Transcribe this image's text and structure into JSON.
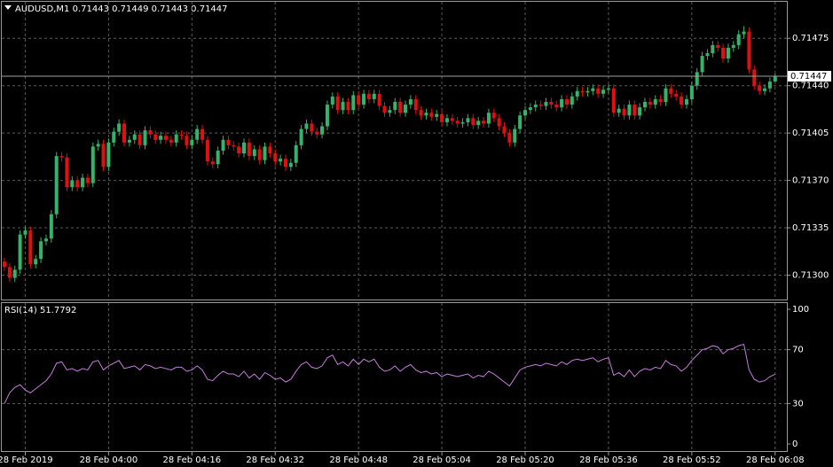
{
  "chart_data": [
    {
      "type": "candlestick",
      "title": "AUDUSD,M1  0.71443 0.71449 0.71443 0.71447",
      "up_color": "#36b36a",
      "down_color": "#e01010",
      "categories": [
        null,
        null,
        null,
        null,
        "28 Feb 2019",
        null,
        null,
        null,
        null,
        null,
        null,
        null,
        null,
        null,
        null,
        null,
        null,
        null,
        null,
        null,
        "28 Feb 04:00",
        null,
        null,
        null,
        null,
        null,
        null,
        null,
        null,
        null,
        null,
        null,
        null,
        null,
        null,
        null,
        "28 Feb 04:16",
        null,
        null,
        null,
        null,
        null,
        null,
        null,
        null,
        null,
        null,
        null,
        null,
        null,
        null,
        null,
        "28 Feb 04:32",
        null,
        null,
        null,
        null,
        null,
        null,
        null,
        null,
        null,
        null,
        null,
        null,
        null,
        null,
        null,
        "28 Feb 04:48",
        null,
        null,
        null,
        null,
        null,
        null,
        null,
        null,
        null,
        null,
        null,
        null,
        null,
        null,
        null,
        "28 Feb 05:04",
        null,
        null,
        null,
        null,
        null,
        null,
        null,
        null,
        null,
        null,
        null,
        null,
        null,
        null,
        null,
        "28 Feb 05:20",
        null,
        null,
        null,
        null,
        null,
        null,
        null,
        null,
        null,
        null,
        null,
        null,
        null,
        null,
        null,
        "28 Feb 05:36",
        null,
        null,
        null,
        null,
        null,
        null,
        null,
        null,
        null,
        null,
        null,
        null,
        null,
        null,
        null,
        "28 Feb 05:52",
        null,
        null,
        null,
        null,
        null,
        null,
        null,
        null,
        null,
        null,
        null,
        null,
        null,
        null,
        null,
        "28 Feb 06:08"
      ],
      "open": [
        0.7131,
        0.71306,
        0.71298,
        0.71304,
        0.7133,
        0.71333,
        0.71308,
        0.71312,
        0.71325,
        0.71327,
        0.71345,
        0.71388,
        0.71387,
        0.71365,
        0.7137,
        0.71365,
        0.71372,
        0.71368,
        0.71395,
        0.71397,
        0.7138,
        0.71398,
        0.71406,
        0.71412,
        0.71398,
        0.714,
        0.71404,
        0.71396,
        0.71407,
        0.71404,
        0.714,
        0.71403,
        0.714,
        0.71398,
        0.71404,
        0.71403,
        0.71396,
        0.714,
        0.71408,
        0.714,
        0.71384,
        0.71382,
        0.71392,
        0.714,
        0.71396,
        0.71395,
        0.7139,
        0.71398,
        0.71388,
        0.71393,
        0.71385,
        0.71395,
        0.7139,
        0.71384,
        0.71386,
        0.7138,
        0.71383,
        0.71396,
        0.71408,
        0.71412,
        0.71406,
        0.71404,
        0.7141,
        0.71426,
        0.71432,
        0.71422,
        0.71428,
        0.71422,
        0.71433,
        0.71426,
        0.71434,
        0.7143,
        0.71434,
        0.71425,
        0.7142,
        0.71422,
        0.71428,
        0.7142,
        0.71426,
        0.7143,
        0.71422,
        0.71418,
        0.7142,
        0.71417,
        0.71419,
        0.71413,
        0.71416,
        0.71414,
        0.71412,
        0.71413,
        0.71416,
        0.71411,
        0.71414,
        0.71412,
        0.7142,
        0.71416,
        0.7141,
        0.71405,
        0.71398,
        0.71408,
        0.71418,
        0.71422,
        0.71424,
        0.71426,
        0.71425,
        0.71428,
        0.71426,
        0.71424,
        0.7143,
        0.71426,
        0.71432,
        0.71436,
        0.71435,
        0.71436,
        0.71438,
        0.71434,
        0.71437,
        0.71438,
        0.7142,
        0.71423,
        0.71418,
        0.71426,
        0.71418,
        0.71424,
        0.71428,
        0.71426,
        0.7143,
        0.71428,
        0.71438,
        0.71434,
        0.71432,
        0.71426,
        0.7143,
        0.7144,
        0.7145,
        0.71462,
        0.71464,
        0.7147,
        0.71468,
        0.7146,
        0.71468,
        0.7147,
        0.71478,
        0.7148,
        0.71452,
        0.7144,
        0.71436,
        0.71438,
        0.71443
      ],
      "high": [
        0.71313,
        0.71309,
        0.71307,
        0.71333,
        0.71336,
        0.71336,
        0.71315,
        0.71328,
        0.7133,
        0.71348,
        0.71391,
        0.71391,
        0.7139,
        0.71373,
        0.71373,
        0.71375,
        0.71375,
        0.71398,
        0.714,
        0.714,
        0.71401,
        0.71409,
        0.71415,
        0.71415,
        0.71403,
        0.71407,
        0.71407,
        0.7141,
        0.7141,
        0.71407,
        0.71406,
        0.71406,
        0.71403,
        0.71407,
        0.71407,
        0.71406,
        0.71403,
        0.71411,
        0.71411,
        0.71403,
        0.71387,
        0.71395,
        0.71403,
        0.71403,
        0.71399,
        0.71398,
        0.71401,
        0.71401,
        0.71396,
        0.71396,
        0.71398,
        0.71398,
        0.71393,
        0.71389,
        0.71389,
        0.71386,
        0.71399,
        0.71411,
        0.71415,
        0.71415,
        0.71409,
        0.71413,
        0.71429,
        0.71435,
        0.71435,
        0.71431,
        0.71431,
        0.71436,
        0.71436,
        0.71437,
        0.71437,
        0.71437,
        0.71437,
        0.71428,
        0.71425,
        0.71431,
        0.71431,
        0.71429,
        0.71433,
        0.71433,
        0.71425,
        0.71423,
        0.71423,
        0.71422,
        0.71422,
        0.71419,
        0.71419,
        0.71417,
        0.71416,
        0.71419,
        0.71419,
        0.71417,
        0.71417,
        0.71423,
        0.71423,
        0.71419,
        0.71413,
        0.71408,
        0.71411,
        0.71421,
        0.71425,
        0.71427,
        0.71429,
        0.71429,
        0.71431,
        0.71431,
        0.71429,
        0.71433,
        0.71433,
        0.71435,
        0.71439,
        0.71439,
        0.71439,
        0.71441,
        0.71441,
        0.7144,
        0.71441,
        0.71441,
        0.71426,
        0.71426,
        0.71429,
        0.71429,
        0.71427,
        0.71431,
        0.71431,
        0.71433,
        0.71433,
        0.71441,
        0.71441,
        0.71437,
        0.71435,
        0.71433,
        0.71443,
        0.71453,
        0.71465,
        0.71467,
        0.71473,
        0.71473,
        0.71471,
        0.71471,
        0.71473,
        0.71481,
        0.71484,
        0.71483,
        0.71455,
        0.71443,
        0.71441,
        0.71446,
        0.71449
      ],
      "low": [
        0.71303,
        0.71295,
        0.71295,
        0.71301,
        0.71327,
        0.71305,
        0.71305,
        0.71309,
        0.71322,
        0.71324,
        0.71342,
        0.71384,
        0.71362,
        0.71362,
        0.71362,
        0.71362,
        0.71365,
        0.71365,
        0.71392,
        0.71377,
        0.71377,
        0.71395,
        0.71403,
        0.71395,
        0.71395,
        0.71397,
        0.71393,
        0.71393,
        0.71401,
        0.71397,
        0.71397,
        0.71397,
        0.71395,
        0.71395,
        0.714,
        0.71393,
        0.71393,
        0.71397,
        0.71397,
        0.71381,
        0.71379,
        0.71379,
        0.71389,
        0.71393,
        0.71392,
        0.71387,
        0.71387,
        0.71385,
        0.71385,
        0.71382,
        0.71382,
        0.71387,
        0.71381,
        0.71381,
        0.71377,
        0.71377,
        0.7138,
        0.71393,
        0.71405,
        0.71403,
        0.71401,
        0.71401,
        0.71407,
        0.71423,
        0.71419,
        0.71419,
        0.71419,
        0.71419,
        0.71423,
        0.71423,
        0.71427,
        0.71427,
        0.71422,
        0.71417,
        0.71417,
        0.71419,
        0.71417,
        0.71417,
        0.71423,
        0.71419,
        0.71415,
        0.71415,
        0.71414,
        0.71414,
        0.7141,
        0.7141,
        0.71411,
        0.71409,
        0.71409,
        0.7141,
        0.71408,
        0.71408,
        0.71409,
        0.71409,
        0.71413,
        0.71407,
        0.71402,
        0.71395,
        0.71395,
        0.71405,
        0.71415,
        0.71419,
        0.71421,
        0.71422,
        0.71422,
        0.71423,
        0.71421,
        0.71421,
        0.71423,
        0.71423,
        0.71429,
        0.71432,
        0.71432,
        0.71433,
        0.71431,
        0.71431,
        0.71434,
        0.71417,
        0.71417,
        0.71415,
        0.71415,
        0.71415,
        0.71415,
        0.71421,
        0.71423,
        0.71423,
        0.71425,
        0.71425,
        0.71431,
        0.71429,
        0.71423,
        0.71423,
        0.71427,
        0.71437,
        0.71447,
        0.71459,
        0.71461,
        0.71465,
        0.71457,
        0.71457,
        0.71465,
        0.71467,
        0.71475,
        0.71449,
        0.71437,
        0.71433,
        0.71433,
        0.71435,
        0.71443
      ],
      "close": [
        0.71306,
        0.71298,
        0.71304,
        0.7133,
        0.71333,
        0.71308,
        0.71312,
        0.71325,
        0.71327,
        0.71345,
        0.71388,
        0.71387,
        0.71365,
        0.7137,
        0.71365,
        0.71372,
        0.71368,
        0.71395,
        0.71397,
        0.7138,
        0.71398,
        0.71406,
        0.71412,
        0.71398,
        0.714,
        0.71404,
        0.71396,
        0.71407,
        0.71404,
        0.714,
        0.71403,
        0.714,
        0.71398,
        0.71404,
        0.71403,
        0.71396,
        0.714,
        0.71408,
        0.714,
        0.71384,
        0.71382,
        0.71392,
        0.714,
        0.71396,
        0.71395,
        0.7139,
        0.71398,
        0.71388,
        0.71393,
        0.71385,
        0.71395,
        0.7139,
        0.71384,
        0.71386,
        0.7138,
        0.71383,
        0.71396,
        0.71408,
        0.71412,
        0.71406,
        0.71404,
        0.7141,
        0.71426,
        0.71432,
        0.71422,
        0.71428,
        0.71422,
        0.71433,
        0.71426,
        0.71434,
        0.7143,
        0.71434,
        0.71425,
        0.7142,
        0.71422,
        0.71428,
        0.7142,
        0.71426,
        0.7143,
        0.71422,
        0.71418,
        0.7142,
        0.71417,
        0.71419,
        0.71413,
        0.71416,
        0.71414,
        0.71412,
        0.71413,
        0.71416,
        0.71411,
        0.71414,
        0.71412,
        0.7142,
        0.71416,
        0.7141,
        0.71405,
        0.71398,
        0.71408,
        0.71418,
        0.71422,
        0.71424,
        0.71426,
        0.71425,
        0.71428,
        0.71426,
        0.71424,
        0.7143,
        0.71426,
        0.71432,
        0.71436,
        0.71435,
        0.71436,
        0.71438,
        0.71434,
        0.71437,
        0.71438,
        0.7142,
        0.71423,
        0.71418,
        0.71426,
        0.71418,
        0.71424,
        0.71428,
        0.71426,
        0.7143,
        0.71428,
        0.71438,
        0.71434,
        0.71432,
        0.71426,
        0.7143,
        0.7144,
        0.7145,
        0.71462,
        0.71464,
        0.7147,
        0.71468,
        0.7146,
        0.71468,
        0.7147,
        0.71478,
        0.7148,
        0.71452,
        0.7144,
        0.71436,
        0.71438,
        0.71443,
        0.71447
      ],
      "ylim": [
        0.71282,
        0.71502
      ],
      "yticks": [
        0.71475,
        {
          "value": 0.7144,
          "label": "0.71440"
        },
        0.71405,
        {
          "value": 0.7137,
          "label": "0.71370"
        },
        0.71335,
        {
          "value": 0.713,
          "label": "0.71300"
        }
      ],
      "current_price": 0.71447,
      "grid": true
    },
    {
      "type": "line",
      "title": "RSI(14) 51.7792",
      "color": "#c77ddb",
      "values": [
        30,
        38,
        42,
        44,
        40,
        38,
        41,
        44,
        47,
        52,
        60,
        61,
        55,
        56,
        54,
        56,
        55,
        61,
        62,
        55,
        58,
        60,
        62,
        56,
        57,
        58,
        55,
        59,
        58,
        56,
        57,
        56,
        55,
        57,
        57,
        54,
        55,
        58,
        55,
        48,
        47,
        51,
        54,
        52,
        52,
        50,
        54,
        49,
        52,
        48,
        53,
        51,
        48,
        49,
        46,
        48,
        54,
        59,
        61,
        57,
        56,
        58,
        64,
        66,
        59,
        61,
        58,
        63,
        59,
        63,
        61,
        63,
        57,
        54,
        55,
        58,
        54,
        57,
        59,
        55,
        53,
        54,
        52,
        53,
        50,
        52,
        51,
        50,
        51,
        52,
        49,
        51,
        50,
        54,
        52,
        49,
        46,
        43,
        49,
        55,
        57,
        58,
        59,
        58,
        60,
        59,
        58,
        61,
        59,
        62,
        63,
        62,
        63,
        64,
        61,
        63,
        64,
        51,
        53,
        50,
        55,
        50,
        54,
        56,
        55,
        57,
        56,
        62,
        59,
        58,
        54,
        57,
        62,
        66,
        70,
        71,
        73,
        72,
        67,
        70,
        71,
        73,
        74,
        55,
        48,
        46,
        47,
        50,
        51.78
      ],
      "ylim": [
        -5.9,
        105.3
      ],
      "yticks": [
        0,
        30,
        70,
        100
      ],
      "levels": [
        30,
        70
      ]
    }
  ]
}
